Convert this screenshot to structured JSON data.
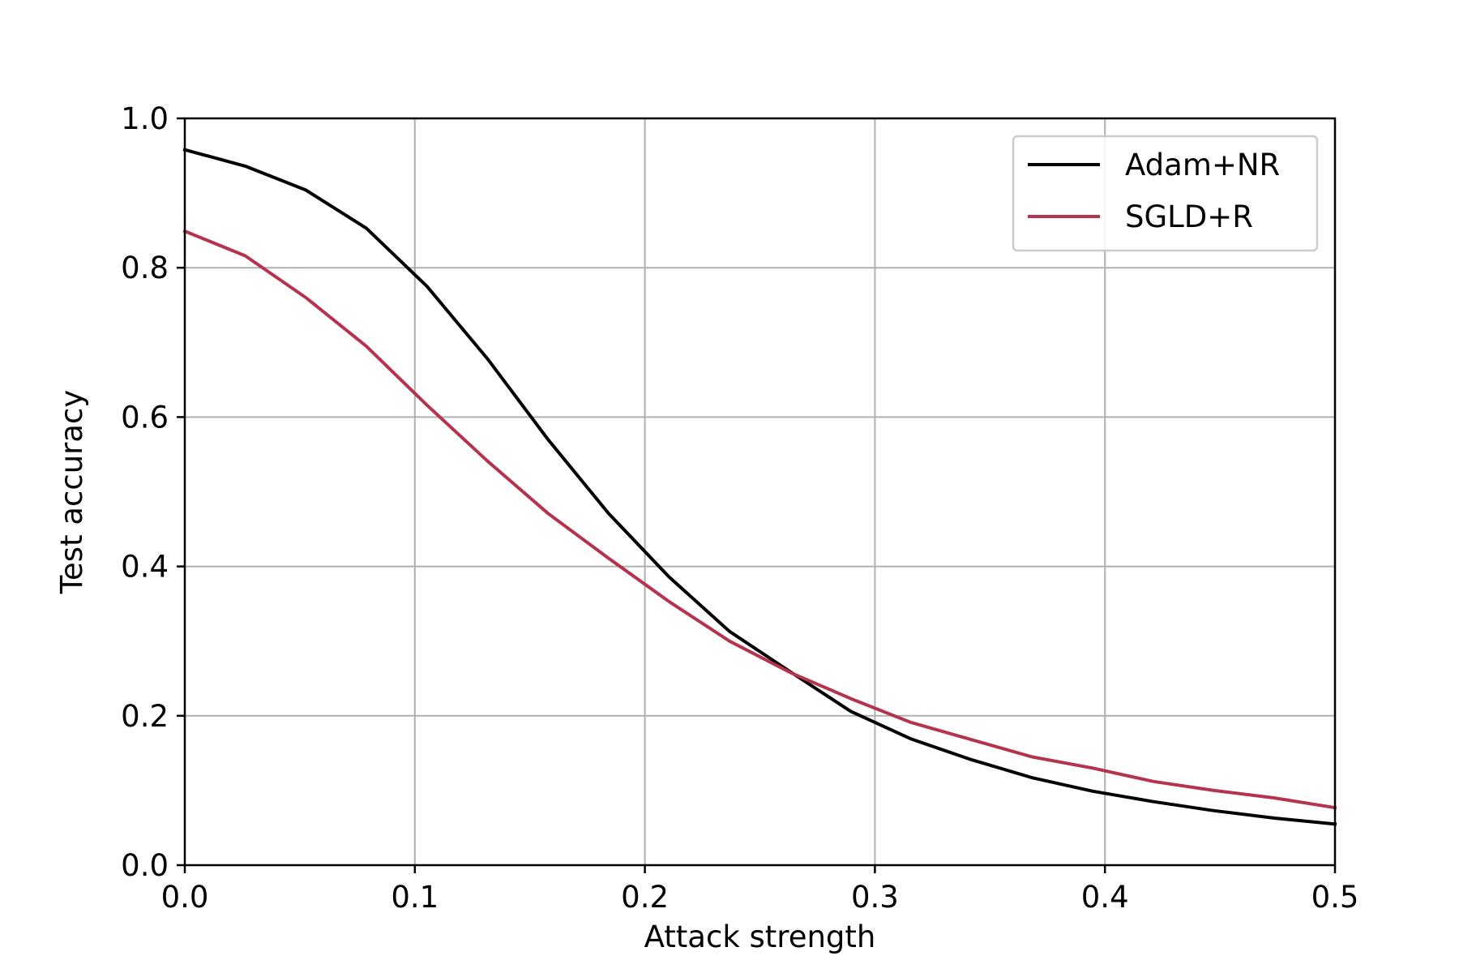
{
  "chart_data": {
    "type": "line",
    "title": "",
    "xlabel": "Attack strength",
    "ylabel": "Test accuracy",
    "xlim": [
      0.0,
      0.5
    ],
    "ylim": [
      0.0,
      1.0
    ],
    "grid": true,
    "legend_position": "top-right",
    "x_ticks": [
      "0.0",
      "0.1",
      "0.2",
      "0.3",
      "0.4",
      "0.5"
    ],
    "y_ticks": [
      "0.0",
      "0.2",
      "0.4",
      "0.6",
      "0.8",
      "1.0"
    ],
    "x": [
      0.0,
      0.0263,
      0.0526,
      0.0789,
      0.1053,
      0.1316,
      0.1579,
      0.1842,
      0.2105,
      0.2368,
      0.2632,
      0.2895,
      0.3158,
      0.3421,
      0.3684,
      0.3947,
      0.4211,
      0.4474,
      0.4737,
      0.5
    ],
    "series": [
      {
        "name": "Adam+NR",
        "color": "#000000",
        "values": [
          0.958,
          0.936,
          0.904,
          0.853,
          0.775,
          0.678,
          0.57,
          0.471,
          0.386,
          0.313,
          0.259,
          0.206,
          0.169,
          0.141,
          0.117,
          0.099,
          0.085,
          0.073,
          0.063,
          0.055
        ]
      },
      {
        "name": "SGLD+R",
        "color": "#b5334f",
        "values": [
          0.849,
          0.816,
          0.76,
          0.695,
          0.616,
          0.541,
          0.471,
          0.411,
          0.353,
          0.3,
          0.258,
          0.223,
          0.191,
          0.168,
          0.145,
          0.13,
          0.112,
          0.1,
          0.09,
          0.077
        ]
      }
    ]
  }
}
